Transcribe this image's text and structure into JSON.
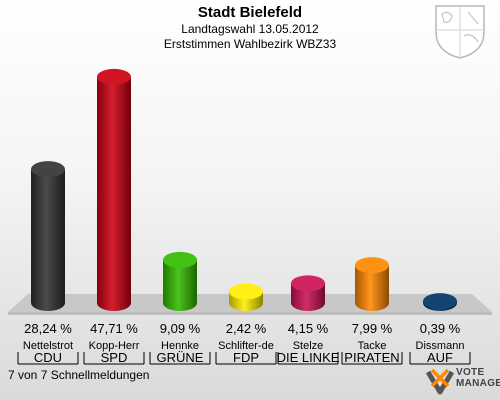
{
  "header": {
    "title": "Stadt Bielefeld",
    "subtitle1": "Landtagswahl 13.05.2012",
    "subtitle2": "Erststimmen Wahlbezirk WBZ33"
  },
  "chart_data": {
    "type": "bar",
    "categories": [
      "CDU",
      "SPD",
      "GRÜNE",
      "FDP",
      "DIE LINKE",
      "PIRATEN",
      "AUF"
    ],
    "candidates": [
      "Nettelstrot",
      "Kopp-Herr",
      "Hennke",
      "Schlifter-de",
      "Stelze",
      "Tacke",
      "Dissmann"
    ],
    "values": [
      28.24,
      47.71,
      9.09,
      2.42,
      4.15,
      7.99,
      0.39
    ],
    "labels": [
      "28,24 %",
      "47,71 %",
      "9,09 %",
      "2,42 %",
      "4,15 %",
      "7,99 %",
      "0,39 %"
    ],
    "colors": [
      "#333333",
      "#cc0011",
      "#33bb00",
      "#ffee00",
      "#cc1155",
      "#ff8800",
      "#003366"
    ],
    "ylim": [
      0,
      50
    ]
  },
  "footer": {
    "status": "7 von 7 Schnellmeldungen"
  },
  "logo": {
    "line1": "VOTE",
    "line2": "MANAGER"
  }
}
